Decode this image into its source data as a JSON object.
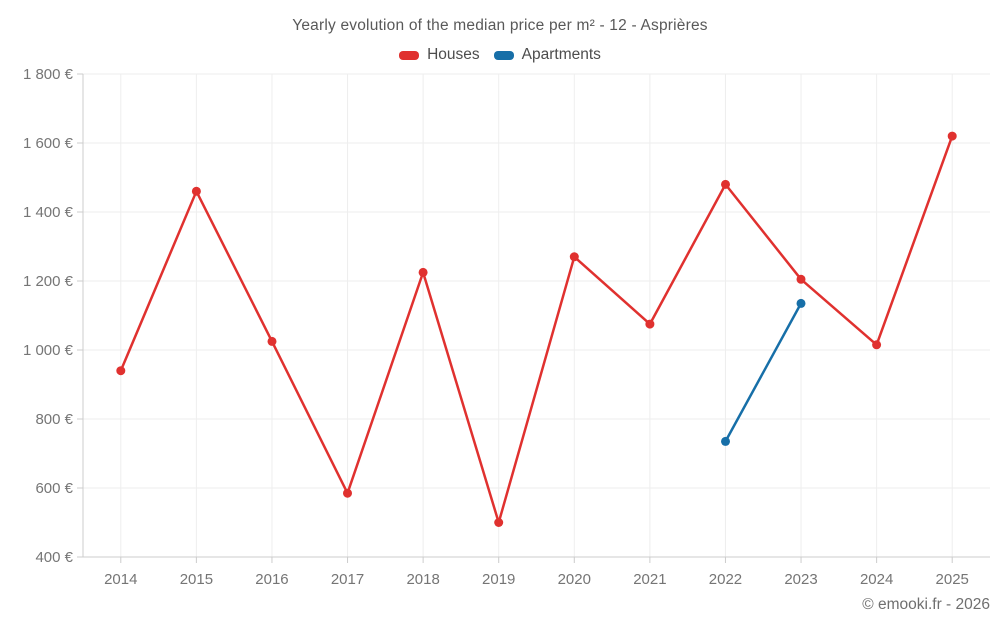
{
  "title": "Yearly evolution of the median price per m² - 12 - Asprières",
  "footer": "© emooki.fr - 2026",
  "legend": {
    "items": [
      {
        "label": "Houses",
        "color": "#e0312f"
      },
      {
        "label": "Apartments",
        "color": "#176fa8"
      }
    ]
  },
  "chart_data": {
    "type": "line",
    "title": "Yearly evolution of the median price per m² - 12 - Asprières",
    "x": [
      2014,
      2015,
      2016,
      2017,
      2018,
      2019,
      2020,
      2021,
      2022,
      2023,
      2024,
      2025
    ],
    "series": [
      {
        "name": "Houses",
        "color": "#e0312f",
        "points": [
          [
            2014,
            940
          ],
          [
            2015,
            1460
          ],
          [
            2016,
            1025
          ],
          [
            2017,
            585
          ],
          [
            2018,
            1225
          ],
          [
            2019,
            500
          ],
          [
            2020,
            1270
          ],
          [
            2021,
            1075
          ],
          [
            2022,
            1480
          ],
          [
            2023,
            1205
          ],
          [
            2024,
            1015
          ],
          [
            2025,
            1620
          ]
        ]
      },
      {
        "name": "Apartments",
        "color": "#176fa8",
        "points": [
          [
            2022,
            735
          ],
          [
            2023,
            1135
          ]
        ]
      }
    ],
    "ylim": [
      400,
      1800
    ],
    "ytick_step": 200,
    "ytick_labels": [
      "400 €",
      "600 €",
      "800 €",
      "1 000 €",
      "1 200 €",
      "1 400 €",
      "1 600 €",
      "1 800 €"
    ],
    "xlabel": "",
    "ylabel": "",
    "grid": true,
    "legend_position": "top-center",
    "currency": "€"
  },
  "style": {
    "grid_color": "#eeeeee",
    "axis_color": "#cccccc",
    "tick_text_color": "#757575"
  }
}
